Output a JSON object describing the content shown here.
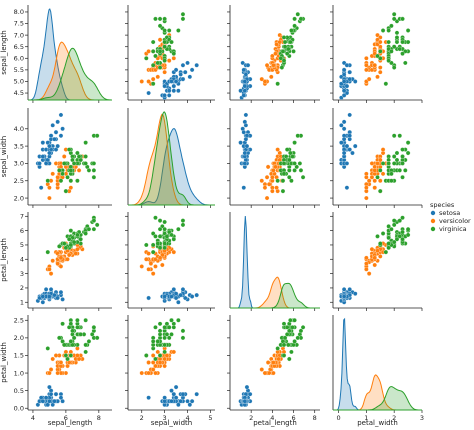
{
  "chart_data": {
    "type": "pairplot",
    "legend_title": "species",
    "legend": "right",
    "variables": [
      {
        "name": "sepal_length",
        "xlim": [
          3.7,
          8.8
        ],
        "xticks": [
          4,
          6,
          8
        ],
        "ylim": [
          4.2,
          8.3
        ],
        "yticks": [
          4.5,
          {
            "value": 5,
            "label": "5.0"
          },
          5.5,
          {
            "value": 6,
            "label": "6.0"
          },
          6.5,
          {
            "value": 7,
            "label": "7.0"
          },
          7.5,
          {
            "value": 8,
            "label": "8.0"
          }
        ]
      },
      {
        "name": "sepal_width",
        "xlim": [
          1.4,
          5.2
        ],
        "xticks": [
          2,
          3,
          4,
          5
        ],
        "ylim": [
          1.8,
          4.6
        ],
        "yticks": [
          {
            "value": 2,
            "label": "2.0"
          },
          2.5,
          {
            "value": 3,
            "label": "3.0"
          },
          3.5,
          {
            "value": 4,
            "label": "4.0"
          }
        ]
      },
      {
        "name": "petal_length",
        "xlim": [
          0,
          8.5
        ],
        "xticks": [
          2,
          4,
          6,
          8
        ],
        "ylim": [
          0.6,
          7.3
        ],
        "yticks": [
          1,
          2,
          3,
          4,
          5,
          6,
          7
        ]
      },
      {
        "name": "petal_width",
        "xlim": [
          -0.2,
          3.0
        ],
        "xticks": [
          0,
          1,
          2,
          3
        ],
        "ylim": [
          -0.05,
          2.65
        ],
        "yticks": [
          {
            "value": 0,
            "label": "0.0"
          },
          0.5,
          {
            "value": 1,
            "label": "1.0"
          },
          1.5,
          {
            "value": 2,
            "label": "2.0"
          },
          2.5
        ]
      }
    ],
    "series": [
      {
        "name": "setosa",
        "color": "#1f77b4",
        "values": [
          [
            5.1,
            4.9,
            4.7,
            4.6,
            5.0,
            5.4,
            4.6,
            5.0,
            4.4,
            4.9,
            5.4,
            4.8,
            4.8,
            4.3,
            5.8,
            5.7,
            5.4,
            5.1,
            5.7,
            5.1,
            5.4,
            5.1,
            4.6,
            5.1,
            4.8,
            5.0,
            5.0,
            5.2,
            5.2,
            4.7,
            4.8,
            5.4,
            5.2,
            5.5,
            4.9,
            5.0,
            5.5,
            4.9,
            4.4,
            5.1,
            5.0,
            4.5,
            4.4,
            5.0,
            5.1,
            4.8,
            5.1,
            4.6,
            5.3,
            5.0
          ],
          [
            3.5,
            3.0,
            3.2,
            3.1,
            3.6,
            3.9,
            3.4,
            3.4,
            2.9,
            3.1,
            3.7,
            3.4,
            3.0,
            3.0,
            4.0,
            4.4,
            3.9,
            3.5,
            3.8,
            3.8,
            3.4,
            3.7,
            3.6,
            3.3,
            3.4,
            3.0,
            3.4,
            3.5,
            3.4,
            3.2,
            3.1,
            3.4,
            4.1,
            4.2,
            3.1,
            3.2,
            3.5,
            3.6,
            3.0,
            3.4,
            3.5,
            2.3,
            3.2,
            3.5,
            3.8,
            3.0,
            3.8,
            3.2,
            3.7,
            3.3
          ],
          [
            1.4,
            1.4,
            1.3,
            1.5,
            1.4,
            1.7,
            1.4,
            1.5,
            1.4,
            1.5,
            1.5,
            1.6,
            1.4,
            1.1,
            1.2,
            1.5,
            1.3,
            1.4,
            1.7,
            1.5,
            1.7,
            1.5,
            1.0,
            1.7,
            1.9,
            1.6,
            1.6,
            1.5,
            1.4,
            1.6,
            1.6,
            1.5,
            1.5,
            1.4,
            1.5,
            1.2,
            1.3,
            1.4,
            1.3,
            1.5,
            1.3,
            1.3,
            1.3,
            1.6,
            1.9,
            1.4,
            1.6,
            1.4,
            1.5,
            1.4
          ],
          [
            0.2,
            0.2,
            0.2,
            0.2,
            0.2,
            0.4,
            0.3,
            0.2,
            0.2,
            0.1,
            0.2,
            0.2,
            0.1,
            0.1,
            0.2,
            0.4,
            0.4,
            0.3,
            0.3,
            0.3,
            0.2,
            0.4,
            0.2,
            0.5,
            0.2,
            0.2,
            0.4,
            0.2,
            0.2,
            0.2,
            0.2,
            0.4,
            0.1,
            0.2,
            0.2,
            0.2,
            0.2,
            0.1,
            0.2,
            0.2,
            0.3,
            0.3,
            0.2,
            0.6,
            0.4,
            0.3,
            0.2,
            0.2,
            0.2,
            0.2
          ]
        ]
      },
      {
        "name": "versicolor",
        "color": "#ff7f0e",
        "values": [
          [
            7.0,
            6.4,
            6.9,
            5.5,
            6.5,
            5.7,
            6.3,
            4.9,
            6.6,
            5.2,
            5.0,
            5.9,
            6.0,
            6.1,
            5.6,
            6.7,
            5.6,
            5.8,
            6.2,
            5.6,
            5.9,
            6.1,
            6.3,
            6.1,
            6.4,
            6.6,
            6.8,
            6.7,
            6.0,
            5.7,
            5.5,
            5.5,
            5.8,
            6.0,
            5.4,
            6.0,
            6.7,
            6.3,
            5.6,
            5.5,
            5.5,
            6.1,
            5.8,
            5.0,
            5.6,
            5.7,
            5.7,
            6.2,
            5.1,
            5.7
          ],
          [
            3.2,
            3.2,
            3.1,
            2.3,
            2.8,
            2.8,
            3.3,
            2.4,
            2.9,
            2.7,
            2.0,
            3.0,
            2.2,
            2.9,
            2.9,
            3.1,
            3.0,
            2.7,
            2.2,
            2.5,
            3.2,
            2.8,
            2.5,
            2.8,
            2.9,
            3.0,
            2.8,
            3.0,
            2.9,
            2.6,
            2.4,
            2.4,
            2.7,
            2.7,
            3.0,
            3.4,
            3.1,
            2.3,
            3.0,
            2.5,
            2.6,
            3.0,
            2.6,
            2.3,
            2.7,
            3.0,
            2.9,
            2.9,
            2.5,
            2.8
          ],
          [
            4.7,
            4.5,
            4.9,
            4.0,
            4.6,
            4.5,
            4.7,
            3.3,
            4.6,
            3.9,
            3.5,
            4.2,
            4.0,
            4.7,
            3.6,
            4.4,
            4.5,
            4.1,
            4.5,
            3.9,
            4.8,
            4.0,
            4.9,
            4.7,
            4.3,
            4.4,
            4.8,
            5.0,
            4.5,
            3.5,
            3.8,
            3.7,
            3.9,
            5.1,
            4.5,
            4.5,
            4.7,
            4.4,
            4.1,
            4.0,
            4.4,
            4.6,
            4.0,
            3.3,
            4.2,
            4.2,
            4.2,
            4.3,
            3.0,
            4.1
          ],
          [
            1.4,
            1.5,
            1.5,
            1.3,
            1.5,
            1.3,
            1.6,
            1.0,
            1.3,
            1.4,
            1.0,
            1.5,
            1.0,
            1.4,
            1.3,
            1.4,
            1.5,
            1.0,
            1.5,
            1.1,
            1.8,
            1.3,
            1.5,
            1.2,
            1.3,
            1.4,
            1.4,
            1.7,
            1.5,
            1.0,
            1.1,
            1.0,
            1.2,
            1.6,
            1.5,
            1.6,
            1.5,
            1.3,
            1.3,
            1.3,
            1.2,
            1.4,
            1.2,
            1.0,
            1.3,
            1.2,
            1.3,
            1.3,
            1.1,
            1.3
          ]
        ]
      },
      {
        "name": "virginica",
        "color": "#2ca02c",
        "values": [
          [
            6.3,
            5.8,
            7.1,
            6.3,
            6.5,
            7.6,
            4.9,
            7.3,
            6.7,
            7.2,
            6.5,
            6.4,
            6.8,
            5.7,
            5.8,
            6.4,
            6.5,
            7.7,
            7.7,
            6.0,
            6.9,
            5.6,
            7.7,
            6.3,
            6.7,
            7.2,
            6.2,
            6.1,
            6.4,
            7.2,
            7.4,
            7.9,
            6.4,
            6.3,
            6.1,
            7.7,
            6.3,
            6.4,
            6.0,
            6.9,
            6.7,
            6.9,
            5.8,
            6.8,
            6.7,
            6.7,
            6.3,
            6.5,
            6.2,
            5.9
          ],
          [
            3.3,
            2.7,
            3.0,
            2.9,
            3.0,
            3.0,
            2.5,
            2.9,
            2.5,
            3.6,
            3.2,
            2.7,
            3.0,
            2.5,
            2.8,
            3.2,
            3.0,
            3.8,
            2.6,
            2.2,
            3.2,
            2.8,
            2.8,
            2.7,
            3.3,
            3.2,
            2.8,
            3.0,
            2.8,
            3.0,
            2.8,
            3.8,
            2.8,
            2.8,
            2.6,
            3.0,
            3.4,
            3.1,
            3.0,
            3.1,
            3.1,
            3.1,
            2.7,
            3.2,
            3.3,
            3.0,
            2.5,
            3.0,
            3.4,
            3.0
          ],
          [
            6.0,
            5.1,
            5.9,
            5.6,
            5.8,
            6.6,
            4.5,
            6.3,
            5.8,
            6.1,
            5.1,
            5.3,
            5.5,
            5.0,
            5.1,
            5.3,
            5.5,
            6.7,
            6.9,
            5.0,
            5.7,
            4.9,
            6.7,
            4.9,
            5.7,
            6.0,
            4.8,
            4.9,
            5.6,
            5.8,
            6.1,
            6.4,
            5.6,
            5.1,
            5.6,
            6.1,
            5.6,
            5.5,
            4.8,
            5.4,
            5.6,
            5.1,
            5.1,
            5.9,
            5.7,
            5.2,
            5.0,
            5.2,
            5.4,
            5.1
          ],
          [
            2.5,
            1.9,
            2.1,
            1.8,
            2.2,
            2.1,
            1.7,
            1.8,
            1.8,
            2.5,
            2.0,
            1.9,
            2.1,
            2.0,
            2.4,
            2.3,
            1.8,
            2.2,
            2.3,
            1.5,
            2.3,
            2.0,
            2.0,
            1.8,
            2.1,
            1.8,
            1.8,
            1.8,
            2.1,
            1.6,
            1.9,
            2.0,
            2.2,
            1.5,
            1.4,
            2.3,
            2.4,
            1.8,
            1.8,
            2.1,
            2.4,
            2.3,
            1.9,
            2.3,
            2.5,
            2.3,
            1.9,
            2.0,
            2.3,
            1.8
          ]
        ]
      }
    ]
  }
}
